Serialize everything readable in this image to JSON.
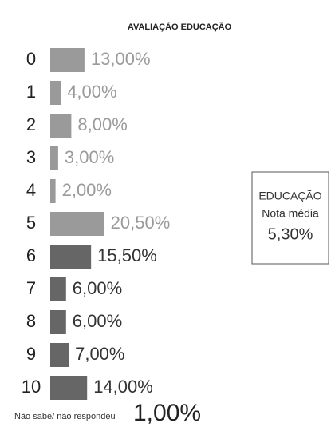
{
  "chart_data": {
    "type": "bar",
    "orientation": "horizontal",
    "title": "AVALIAÇÃO EDUCAÇÃO",
    "categories": [
      "0",
      "1",
      "2",
      "3",
      "4",
      "5",
      "6",
      "7",
      "8",
      "9",
      "10"
    ],
    "values": [
      13,
      4,
      8,
      3,
      2,
      20.5,
      15.5,
      6,
      6,
      7,
      14
    ],
    "value_labels": [
      "13,00%",
      "4,00%",
      "8,00%",
      "3,00%",
      "2,00%",
      "20,50%",
      "15,50%",
      "6,00%",
      "6,00%",
      "7,00%",
      "14,00%"
    ],
    "colors": [
      "#9a9a9a",
      "#9a9a9a",
      "#9a9a9a",
      "#9a9a9a",
      "#9a9a9a",
      "#9a9a9a",
      "#666666",
      "#666666",
      "#666666",
      "#666666",
      "#666666"
    ],
    "label_colors": [
      "#9a9a9a",
      "#9a9a9a",
      "#9a9a9a",
      "#9a9a9a",
      "#9a9a9a",
      "#9a9a9a",
      "#333333",
      "#333333",
      "#333333",
      "#333333",
      "#333333"
    ],
    "no_answer": {
      "label": "Não sabe/ não respondeu",
      "value": 1,
      "value_label": "1,00%"
    },
    "note": {
      "title": "EDUCAÇÃO",
      "subtitle": "Nota média",
      "value_label": "5,30%"
    }
  }
}
